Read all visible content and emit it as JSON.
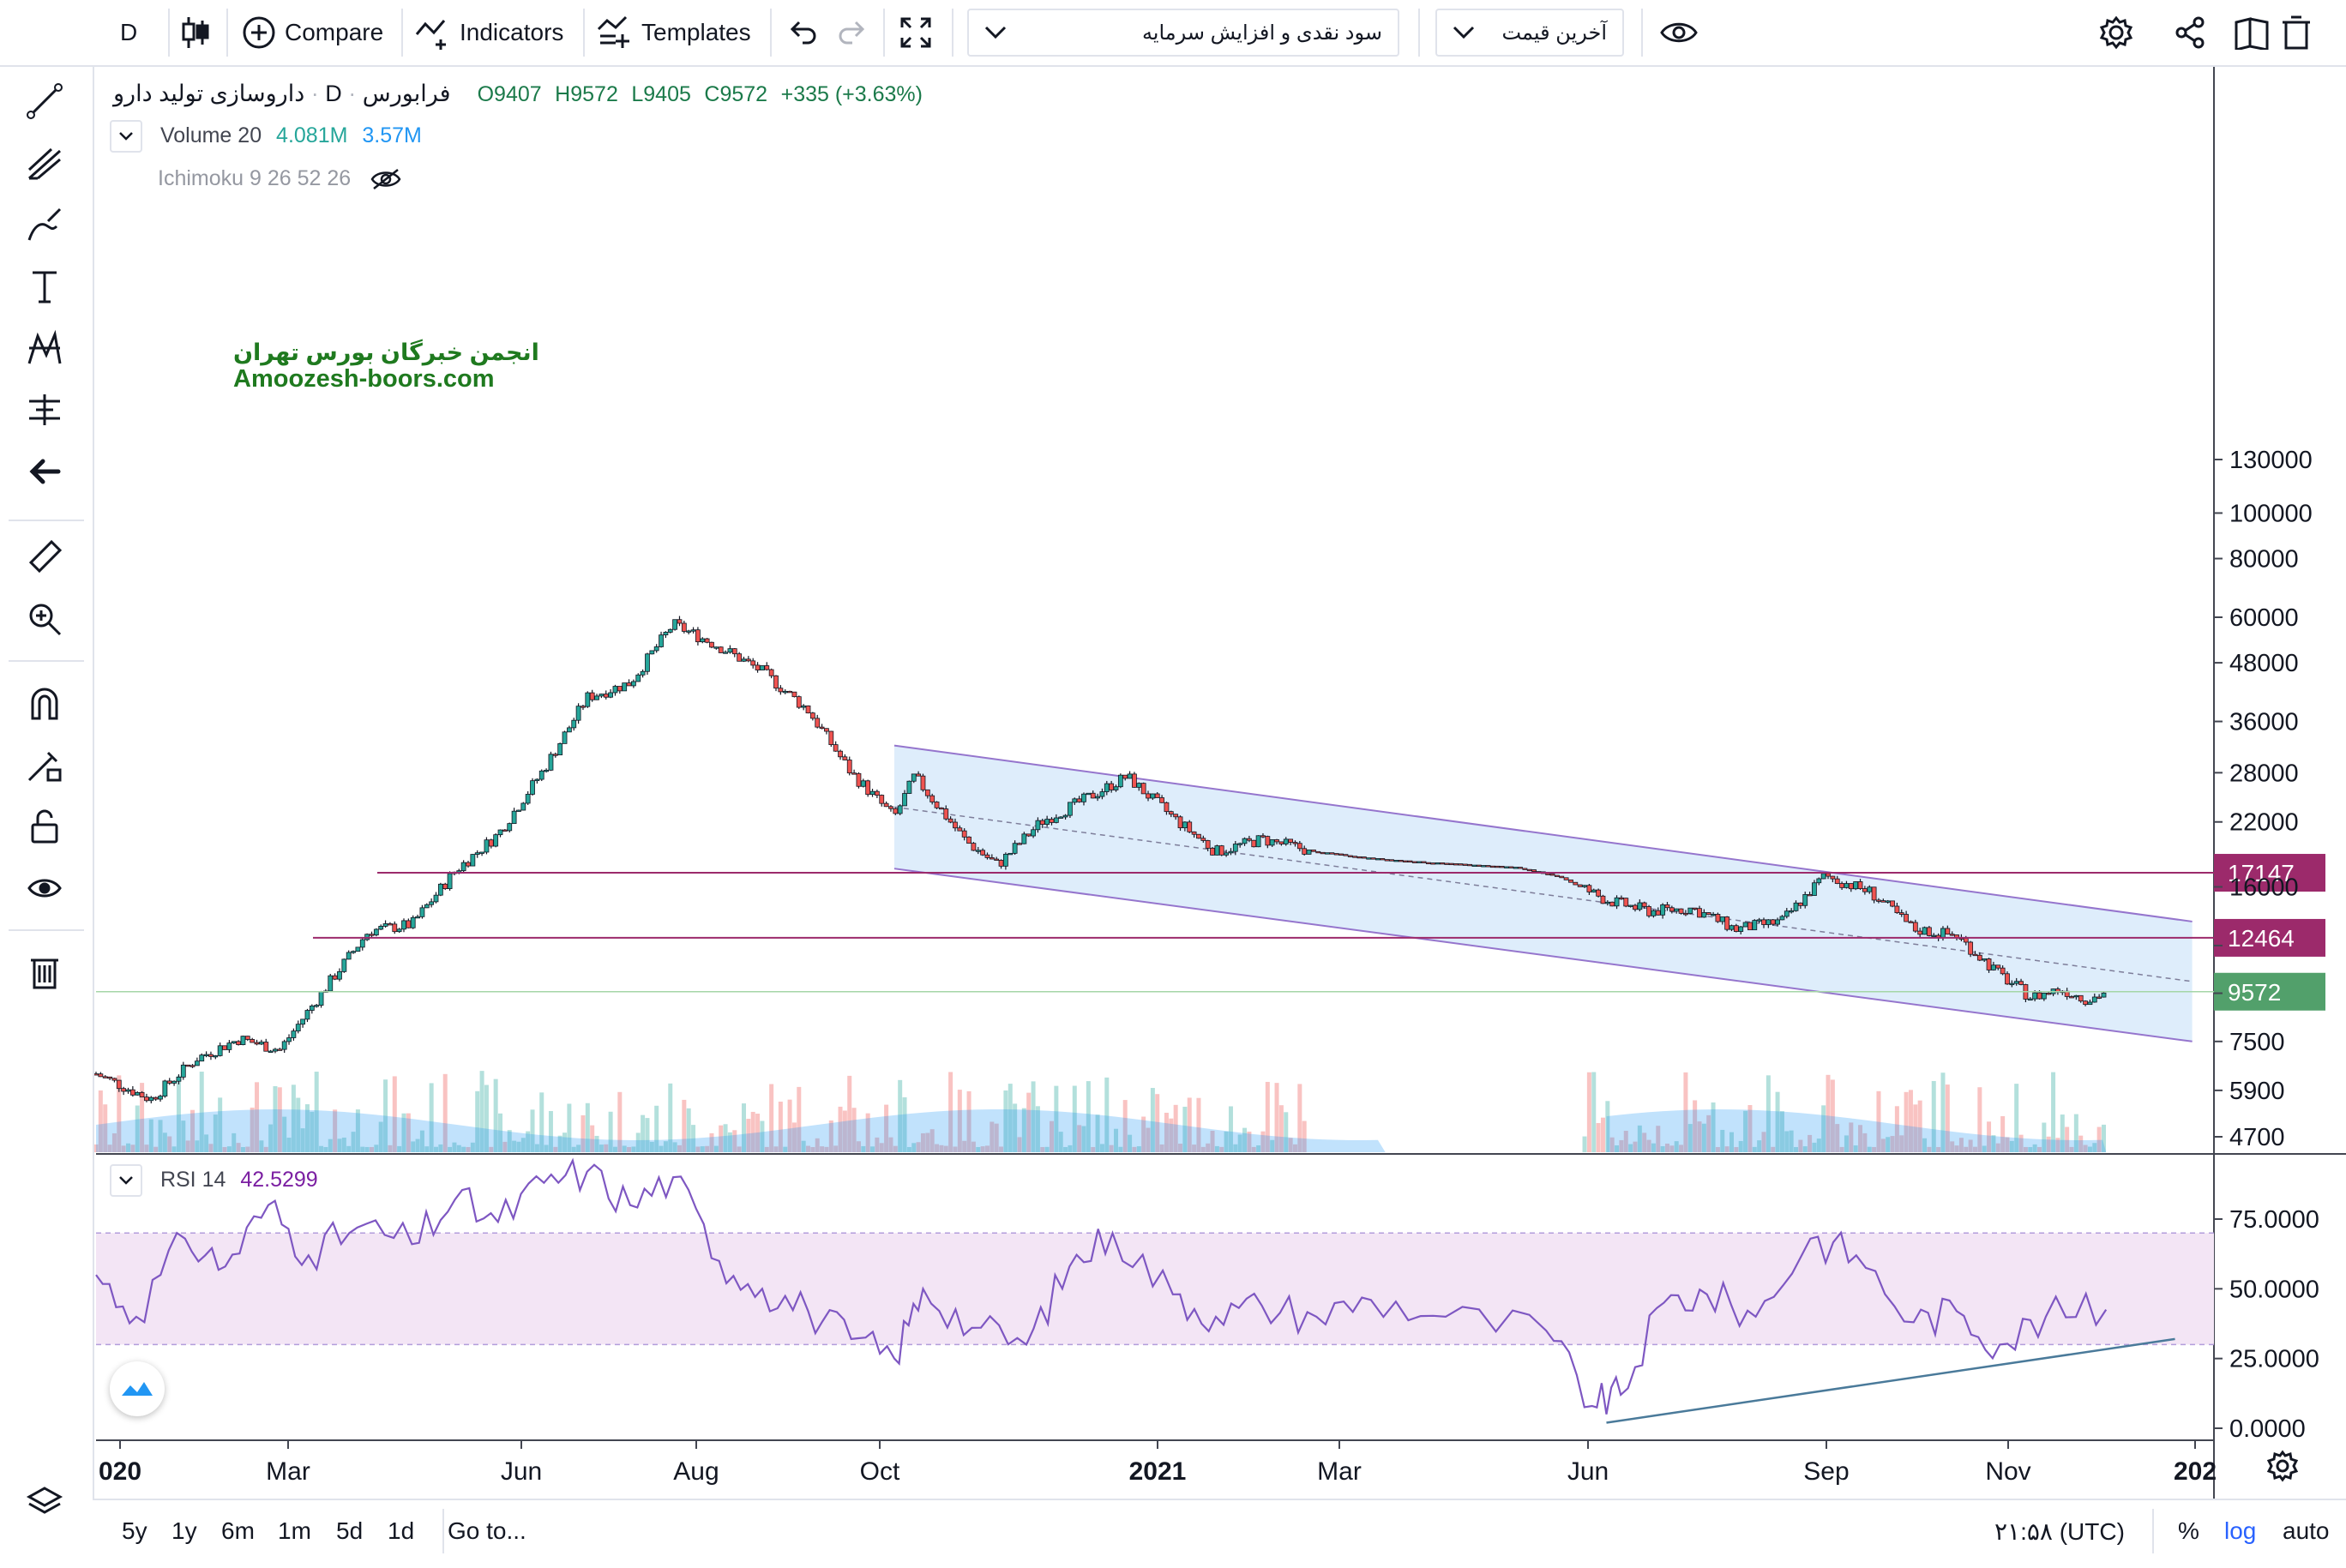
{
  "toolbar": {
    "interval": "D",
    "compare": "Compare",
    "indicators": "Indicators",
    "templates": "Templates",
    "study_select": "سود نقدی و افزایش سرمایه",
    "price_select": "آخرین قیمت"
  },
  "legend": {
    "symbol": "داروسازی تولید دارو",
    "interval": "D",
    "exchange": "فرابورس",
    "ohlc": {
      "o": "O9407",
      "h": "H9572",
      "l": "L9405",
      "c": "C9572"
    },
    "change": "+335 (+3.63%)",
    "volume_label": "Volume 20",
    "volume_value": "4.081M",
    "volume_ma": "3.57M",
    "ichimoku": "Ichimoku 9 26 52 26",
    "rsi_label": "RSI 14",
    "rsi_value": "42.5299"
  },
  "watermark": {
    "line1": "انجمن خبرگان بورس تهران",
    "line2": "Amoozesh-boors.com"
  },
  "bottombar": {
    "ranges": [
      "5y",
      "1y",
      "6m",
      "1m",
      "5d",
      "1d"
    ],
    "goto": "Go to...",
    "time": "۲۱:۵۸ (UTC)",
    "percent": "%",
    "log": "log",
    "auto": "auto"
  },
  "colors": {
    "up": "#26a69a",
    "down": "#ef5350",
    "channel": "#bbdefb",
    "rsi": "#7e57c2",
    "level": "#9c2a6b",
    "price": "#52a06b"
  },
  "chart_data": [
    {
      "type": "candlestick",
      "scale": "log",
      "yticks": [
        4700,
        5900,
        7500,
        9500,
        12000,
        16000,
        22000,
        28000,
        36000,
        48000,
        60000,
        80000,
        100000,
        130000
      ],
      "ytick_labels": [
        "4700",
        "5900",
        "7500",
        "",
        "",
        "16000",
        "22000",
        "28000",
        "36000",
        "48000",
        "60000",
        "80000",
        "100000",
        "130000"
      ],
      "xticks": [
        "020",
        "Mar",
        "Jun",
        "Aug",
        "Oct",
        "2021",
        "Mar",
        "Jun",
        "Sep",
        "Nov",
        "202"
      ],
      "price_levels": [
        {
          "value": 17147,
          "label": "17147"
        },
        {
          "value": 12464,
          "label": "12464"
        }
      ],
      "last_price": {
        "value": 9572,
        "label": "9572"
      },
      "close_path": [
        [
          "2020-01-01",
          6400
        ],
        [
          "2020-01-20",
          5650
        ],
        [
          "2020-02-05",
          6900
        ],
        [
          "2020-02-20",
          7600
        ],
        [
          "2020-03-05",
          7200
        ],
        [
          "2020-03-20",
          9600
        ],
        [
          "2020-04-05",
          12900
        ],
        [
          "2020-04-20",
          13300
        ],
        [
          "2020-05-05",
          17300
        ],
        [
          "2020-05-20",
          20700
        ],
        [
          "2020-06-05",
          28500
        ],
        [
          "2020-06-20",
          40500
        ],
        [
          "2020-07-05",
          43500
        ],
        [
          "2020-07-20",
          58000
        ],
        [
          "2020-08-05",
          52000
        ],
        [
          "2020-08-20",
          46000
        ],
        [
          "2020-09-05",
          38000
        ],
        [
          "2020-09-20",
          28000
        ],
        [
          "2020-10-05",
          22500
        ],
        [
          "2020-10-12",
          27500
        ],
        [
          "2020-10-30",
          20000
        ],
        [
          "2020-11-10",
          17800
        ],
        [
          "2020-11-25",
          22000
        ],
        [
          "2020-12-10",
          24500
        ],
        [
          "2020-12-25",
          27500
        ],
        [
          "2021-01-10",
          22500
        ],
        [
          "2021-01-25",
          19000
        ],
        [
          "2021-02-10",
          20200
        ],
        [
          "2021-03-01",
          19000
        ],
        [
          "2021-03-20",
          18400
        ],
        [
          "2021-04-10",
          18000
        ],
        [
          "2021-05-10",
          17600
        ],
        [
          "2021-05-25",
          16800
        ],
        [
          "2021-06-10",
          15000
        ],
        [
          "2021-06-25",
          14200
        ],
        [
          "2021-07-10",
          14400
        ],
        [
          "2021-07-25",
          13000
        ],
        [
          "2021-08-10",
          13500
        ],
        [
          "2021-08-25",
          16900
        ],
        [
          "2021-09-10",
          15600
        ],
        [
          "2021-09-25",
          13000
        ],
        [
          "2021-10-10",
          12600
        ],
        [
          "2021-10-25",
          10400
        ],
        [
          "2021-11-05",
          9300
        ],
        [
          "2021-11-15",
          9700
        ],
        [
          "2021-11-25",
          9200
        ],
        [
          "2021-12-01",
          9572
        ]
      ],
      "trend_channel": {
        "upper": [
          [
            "2020-10-05",
            32000
          ],
          [
            "2021-12-31",
            13500
          ]
        ],
        "lower": [
          [
            "2020-10-05",
            17500
          ],
          [
            "2021-12-31",
            7500
          ]
        ]
      },
      "volume_ma": "3.57M"
    },
    {
      "type": "line",
      "series_name": "RSI 14",
      "yticks": [
        0,
        25,
        50,
        75
      ],
      "ytick_labels": [
        "0.0000",
        "25.0000",
        "50.0000",
        "75.0000"
      ],
      "band": [
        30,
        70
      ],
      "last": 42.5299,
      "points": [
        [
          "2020-01-01",
          55
        ],
        [
          "2020-01-15",
          40
        ],
        [
          "2020-02-01",
          68
        ],
        [
          "2020-02-15",
          58
        ],
        [
          "2020-03-01",
          80
        ],
        [
          "2020-03-15",
          62
        ],
        [
          "2020-04-01",
          72
        ],
        [
          "2020-04-20",
          66
        ],
        [
          "2020-05-05",
          82
        ],
        [
          "2020-05-20",
          74
        ],
        [
          "2020-06-05",
          88
        ],
        [
          "2020-06-20",
          92
        ],
        [
          "2020-07-05",
          80
        ],
        [
          "2020-07-20",
          90
        ],
        [
          "2020-08-05",
          60
        ],
        [
          "2020-08-20",
          50
        ],
        [
          "2020-09-05",
          42
        ],
        [
          "2020-09-20",
          32
        ],
        [
          "2020-10-05",
          25
        ],
        [
          "2020-10-15",
          50
        ],
        [
          "2020-11-01",
          36
        ],
        [
          "2020-11-20",
          30
        ],
        [
          "2020-12-05",
          58
        ],
        [
          "2020-12-20",
          70
        ],
        [
          "2021-01-10",
          48
        ],
        [
          "2021-01-25",
          40
        ],
        [
          "2021-02-10",
          44
        ],
        [
          "2021-03-01",
          40
        ],
        [
          "2021-03-20",
          46
        ],
        [
          "2021-04-15",
          40
        ],
        [
          "2021-05-20",
          35
        ],
        [
          "2021-06-05",
          8
        ],
        [
          "2021-06-15",
          12
        ],
        [
          "2021-06-30",
          45
        ],
        [
          "2021-07-15",
          48
        ],
        [
          "2021-08-01",
          40
        ],
        [
          "2021-08-20",
          68
        ],
        [
          "2021-09-05",
          62
        ],
        [
          "2021-09-25",
          38
        ],
        [
          "2021-10-10",
          42
        ],
        [
          "2021-10-25",
          30
        ],
        [
          "2021-11-10",
          40
        ],
        [
          "2021-12-01",
          42.53
        ]
      ],
      "trendline": [
        [
          "2021-06-10",
          2
        ],
        [
          "2021-12-25",
          32
        ]
      ]
    }
  ]
}
